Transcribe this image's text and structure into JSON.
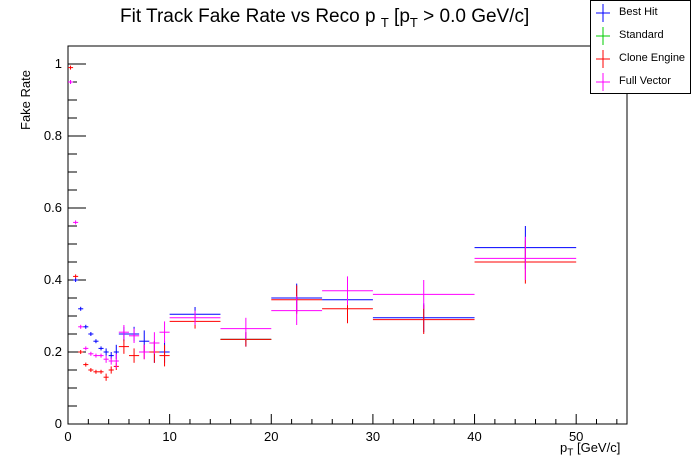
{
  "chart_data": {
    "type": "scatter",
    "title_main": "Fit Track Fake Rate vs Reco p",
    "title_sub": "T",
    "title_rest": "[p",
    "title_sub2": "T",
    "title_end": "> 0.0 GeV/c]",
    "xlabel_main": "p",
    "xlabel_sub": "T",
    "xlabel_rest": "[GeV/c]",
    "ylabel": "Fake Rate",
    "xlim": [
      0,
      55
    ],
    "ylim": [
      0,
      1.05
    ],
    "xticks": [
      0,
      10,
      20,
      30,
      40,
      50
    ],
    "yticks": [
      0,
      0.2,
      0.4,
      0.6,
      0.8,
      1
    ],
    "xtick_labels": [
      "0",
      "10",
      "20",
      "30",
      "40",
      "50"
    ],
    "ytick_labels": [
      "0",
      "0.2",
      "0.4",
      "0.6",
      "0.8",
      "1"
    ],
    "legend_position": "top-right",
    "series": [
      {
        "name": "Best Hit",
        "color": "#0000ff",
        "points": [
          {
            "x": 0.25,
            "xerr": 0.25,
            "y": 0.95,
            "yerr": 0.0
          },
          {
            "x": 0.75,
            "xerr": 0.25,
            "y": 0.4,
            "yerr": 0.0
          },
          {
            "x": 1.25,
            "xerr": 0.25,
            "y": 0.32,
            "yerr": 0.0
          },
          {
            "x": 1.75,
            "xerr": 0.25,
            "y": 0.27,
            "yerr": 0.0
          },
          {
            "x": 2.25,
            "xerr": 0.25,
            "y": 0.25,
            "yerr": 0.0
          },
          {
            "x": 2.75,
            "xerr": 0.25,
            "y": 0.23,
            "yerr": 0.0
          },
          {
            "x": 3.25,
            "xerr": 0.25,
            "y": 0.21,
            "yerr": 0.0
          },
          {
            "x": 3.75,
            "xerr": 0.25,
            "y": 0.2,
            "yerr": 0.01
          },
          {
            "x": 4.25,
            "xerr": 0.25,
            "y": 0.19,
            "yerr": 0.01
          },
          {
            "x": 4.75,
            "xerr": 0.25,
            "y": 0.2,
            "yerr": 0.02
          },
          {
            "x": 5.5,
            "xerr": 0.5,
            "y": 0.25,
            "yerr": 0.02
          },
          {
            "x": 6.5,
            "xerr": 0.5,
            "y": 0.25,
            "yerr": 0.02
          },
          {
            "x": 7.5,
            "xerr": 0.5,
            "y": 0.23,
            "yerr": 0.03
          },
          {
            "x": 8.5,
            "xerr": 0.5,
            "y": 0.2,
            "yerr": 0.03
          },
          {
            "x": 9.5,
            "xerr": 0.5,
            "y": 0.2,
            "yerr": 0.03
          },
          {
            "x": 12.5,
            "xerr": 2.5,
            "y": 0.305,
            "yerr": 0.02
          },
          {
            "x": 17.5,
            "xerr": 2.5,
            "y": 0.235,
            "yerr": 0.02
          },
          {
            "x": 22.5,
            "xerr": 2.5,
            "y": 0.35,
            "yerr": 0.04
          },
          {
            "x": 27.5,
            "xerr": 2.5,
            "y": 0.345,
            "yerr": 0.04
          },
          {
            "x": 35.0,
            "xerr": 5.0,
            "y": 0.295,
            "yerr": 0.04
          },
          {
            "x": 45.0,
            "xerr": 5.0,
            "y": 0.49,
            "yerr": 0.06
          }
        ]
      },
      {
        "name": "Standard",
        "color": "#00cc00",
        "points": [
          {
            "x": 17.5,
            "xerr": 2.5,
            "y": 0.235,
            "yerr": 0.0
          }
        ]
      },
      {
        "name": "Clone Engine",
        "color": "#ff0000",
        "points": [
          {
            "x": 0.25,
            "xerr": 0.25,
            "y": 0.99,
            "yerr": 0.0
          },
          {
            "x": 0.75,
            "xerr": 0.25,
            "y": 0.41,
            "yerr": 0.0
          },
          {
            "x": 1.25,
            "xerr": 0.25,
            "y": 0.2,
            "yerr": 0.0
          },
          {
            "x": 1.75,
            "xerr": 0.25,
            "y": 0.165,
            "yerr": 0.0
          },
          {
            "x": 2.25,
            "xerr": 0.25,
            "y": 0.15,
            "yerr": 0.0
          },
          {
            "x": 2.75,
            "xerr": 0.25,
            "y": 0.145,
            "yerr": 0.0
          },
          {
            "x": 3.25,
            "xerr": 0.25,
            "y": 0.145,
            "yerr": 0.0
          },
          {
            "x": 3.75,
            "xerr": 0.25,
            "y": 0.13,
            "yerr": 0.01
          },
          {
            "x": 4.25,
            "xerr": 0.25,
            "y": 0.15,
            "yerr": 0.01
          },
          {
            "x": 4.75,
            "xerr": 0.25,
            "y": 0.16,
            "yerr": 0.01
          },
          {
            "x": 5.5,
            "xerr": 0.5,
            "y": 0.215,
            "yerr": 0.02
          },
          {
            "x": 6.5,
            "xerr": 0.5,
            "y": 0.19,
            "yerr": 0.02
          },
          {
            "x": 7.5,
            "xerr": 0.5,
            "y": 0.2,
            "yerr": 0.02
          },
          {
            "x": 8.5,
            "xerr": 0.5,
            "y": 0.2,
            "yerr": 0.03
          },
          {
            "x": 9.5,
            "xerr": 0.5,
            "y": 0.19,
            "yerr": 0.03
          },
          {
            "x": 12.5,
            "xerr": 2.5,
            "y": 0.285,
            "yerr": 0.02
          },
          {
            "x": 17.5,
            "xerr": 2.5,
            "y": 0.235,
            "yerr": 0.02
          },
          {
            "x": 22.5,
            "xerr": 2.5,
            "y": 0.345,
            "yerr": 0.04
          },
          {
            "x": 27.5,
            "xerr": 2.5,
            "y": 0.32,
            "yerr": 0.04
          },
          {
            "x": 35.0,
            "xerr": 5.0,
            "y": 0.29,
            "yerr": 0.04
          },
          {
            "x": 45.0,
            "xerr": 5.0,
            "y": 0.45,
            "yerr": 0.06
          }
        ]
      },
      {
        "name": "Full Vector",
        "color": "#ff00ff",
        "points": [
          {
            "x": 0.25,
            "xerr": 0.25,
            "y": 0.95,
            "yerr": 0.0
          },
          {
            "x": 0.75,
            "xerr": 0.25,
            "y": 0.56,
            "yerr": 0.0
          },
          {
            "x": 1.25,
            "xerr": 0.25,
            "y": 0.27,
            "yerr": 0.0
          },
          {
            "x": 1.75,
            "xerr": 0.25,
            "y": 0.21,
            "yerr": 0.0
          },
          {
            "x": 2.25,
            "xerr": 0.25,
            "y": 0.195,
            "yerr": 0.0
          },
          {
            "x": 2.75,
            "xerr": 0.25,
            "y": 0.19,
            "yerr": 0.0
          },
          {
            "x": 3.25,
            "xerr": 0.25,
            "y": 0.19,
            "yerr": 0.0
          },
          {
            "x": 3.75,
            "xerr": 0.25,
            "y": 0.18,
            "yerr": 0.01
          },
          {
            "x": 4.25,
            "xerr": 0.25,
            "y": 0.175,
            "yerr": 0.01
          },
          {
            "x": 4.75,
            "xerr": 0.25,
            "y": 0.175,
            "yerr": 0.02
          },
          {
            "x": 5.5,
            "xerr": 0.5,
            "y": 0.255,
            "yerr": 0.02
          },
          {
            "x": 6.5,
            "xerr": 0.5,
            "y": 0.245,
            "yerr": 0.02
          },
          {
            "x": 7.5,
            "xerr": 0.5,
            "y": 0.2,
            "yerr": 0.02
          },
          {
            "x": 8.5,
            "xerr": 0.5,
            "y": 0.225,
            "yerr": 0.03
          },
          {
            "x": 9.5,
            "xerr": 0.5,
            "y": 0.255,
            "yerr": 0.03
          },
          {
            "x": 12.5,
            "xerr": 2.5,
            "y": 0.295,
            "yerr": 0.02
          },
          {
            "x": 17.5,
            "xerr": 2.5,
            "y": 0.265,
            "yerr": 0.03
          },
          {
            "x": 22.5,
            "xerr": 2.5,
            "y": 0.315,
            "yerr": 0.04
          },
          {
            "x": 27.5,
            "xerr": 2.5,
            "y": 0.37,
            "yerr": 0.04
          },
          {
            "x": 35.0,
            "xerr": 5.0,
            "y": 0.36,
            "yerr": 0.04
          },
          {
            "x": 45.0,
            "xerr": 5.0,
            "y": 0.46,
            "yerr": 0.06
          }
        ]
      }
    ]
  }
}
